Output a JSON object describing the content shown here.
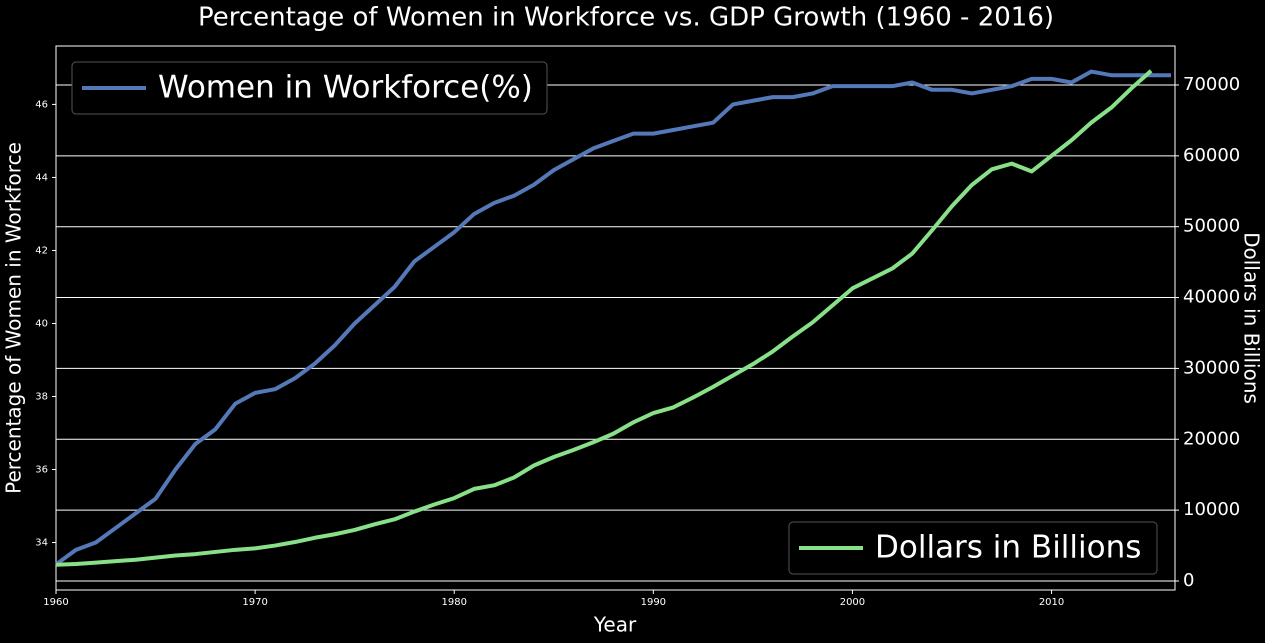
{
  "chart_data": {
    "type": "line",
    "title": "Percentage of Women in Workforce vs. GDP Growth (1960 - 2016)",
    "x_label": "Year",
    "y_label": "Percentage of Women in Workforce",
    "y2_label": "Dollars in Billions",
    "x": [
      1960,
      1961,
      1962,
      1963,
      1964,
      1965,
      1966,
      1967,
      1968,
      1969,
      1970,
      1971,
      1972,
      1973,
      1974,
      1975,
      1976,
      1977,
      1978,
      1979,
      1980,
      1981,
      1982,
      1983,
      1984,
      1985,
      1986,
      1987,
      1988,
      1989,
      1990,
      1991,
      1992,
      1993,
      1994,
      1995,
      1996,
      1997,
      1998,
      1999,
      2000,
      2001,
      2002,
      2003,
      2004,
      2005,
      2006,
      2007,
      2008,
      2009,
      2010,
      2011,
      2012,
      2013,
      2014,
      2015,
      2016
    ],
    "series": [
      {
        "name": "Women in Workforce(%)",
        "color": "#5578b8",
        "axis": "y",
        "legend_loc": "upper left",
        "values": [
          33.4,
          33.8,
          34.0,
          34.4,
          34.8,
          35.2,
          36.0,
          36.7,
          37.1,
          37.8,
          38.1,
          38.2,
          38.5,
          38.9,
          39.4,
          40.0,
          40.5,
          41.0,
          41.7,
          42.1,
          42.5,
          43.0,
          43.3,
          43.5,
          43.8,
          44.2,
          44.5,
          44.8,
          45.0,
          45.2,
          45.2,
          45.3,
          45.4,
          45.5,
          46.0,
          46.1,
          46.2,
          46.2,
          46.3,
          46.5,
          46.5,
          46.5,
          46.5,
          46.6,
          46.4,
          46.4,
          46.3,
          46.4,
          46.5,
          46.7,
          46.7,
          46.6,
          46.9,
          46.8,
          46.8,
          46.8,
          46.8
        ]
      },
      {
        "name": "Dollars in Billions",
        "color": "#88e088",
        "axis": "y2",
        "legend_loc": "lower right",
        "values": [
          2300,
          2400,
          2600,
          2800,
          3000,
          3300,
          3600,
          3800,
          4100,
          4400,
          4600,
          5000,
          5500,
          6100,
          6600,
          7200,
          8000,
          8700,
          9800,
          10800,
          11700,
          13000,
          13500,
          14600,
          16300,
          17500,
          18500,
          19600,
          20800,
          22400,
          23700,
          24500,
          25900,
          27400,
          29000,
          30600,
          32400,
          34500,
          36500,
          38900,
          41300,
          42700,
          44100,
          46200,
          49500,
          52900,
          55900,
          58100,
          58900,
          57800,
          60000,
          62200,
          64700,
          66800,
          69500,
          72000,
          null
        ]
      }
    ],
    "xlim": [
      1960,
      2016.2
    ],
    "xticks": [
      1960,
      1970,
      1980,
      1990,
      2000,
      2010
    ],
    "ylim": [
      32.7,
      47.6
    ],
    "yticks": [
      34,
      36,
      38,
      40,
      42,
      44,
      46
    ],
    "y2lim": [
      -1270,
      75500
    ],
    "y2ticks": [
      0,
      10000,
      20000,
      30000,
      40000,
      50000,
      60000,
      70000
    ],
    "grid": "y2"
  }
}
